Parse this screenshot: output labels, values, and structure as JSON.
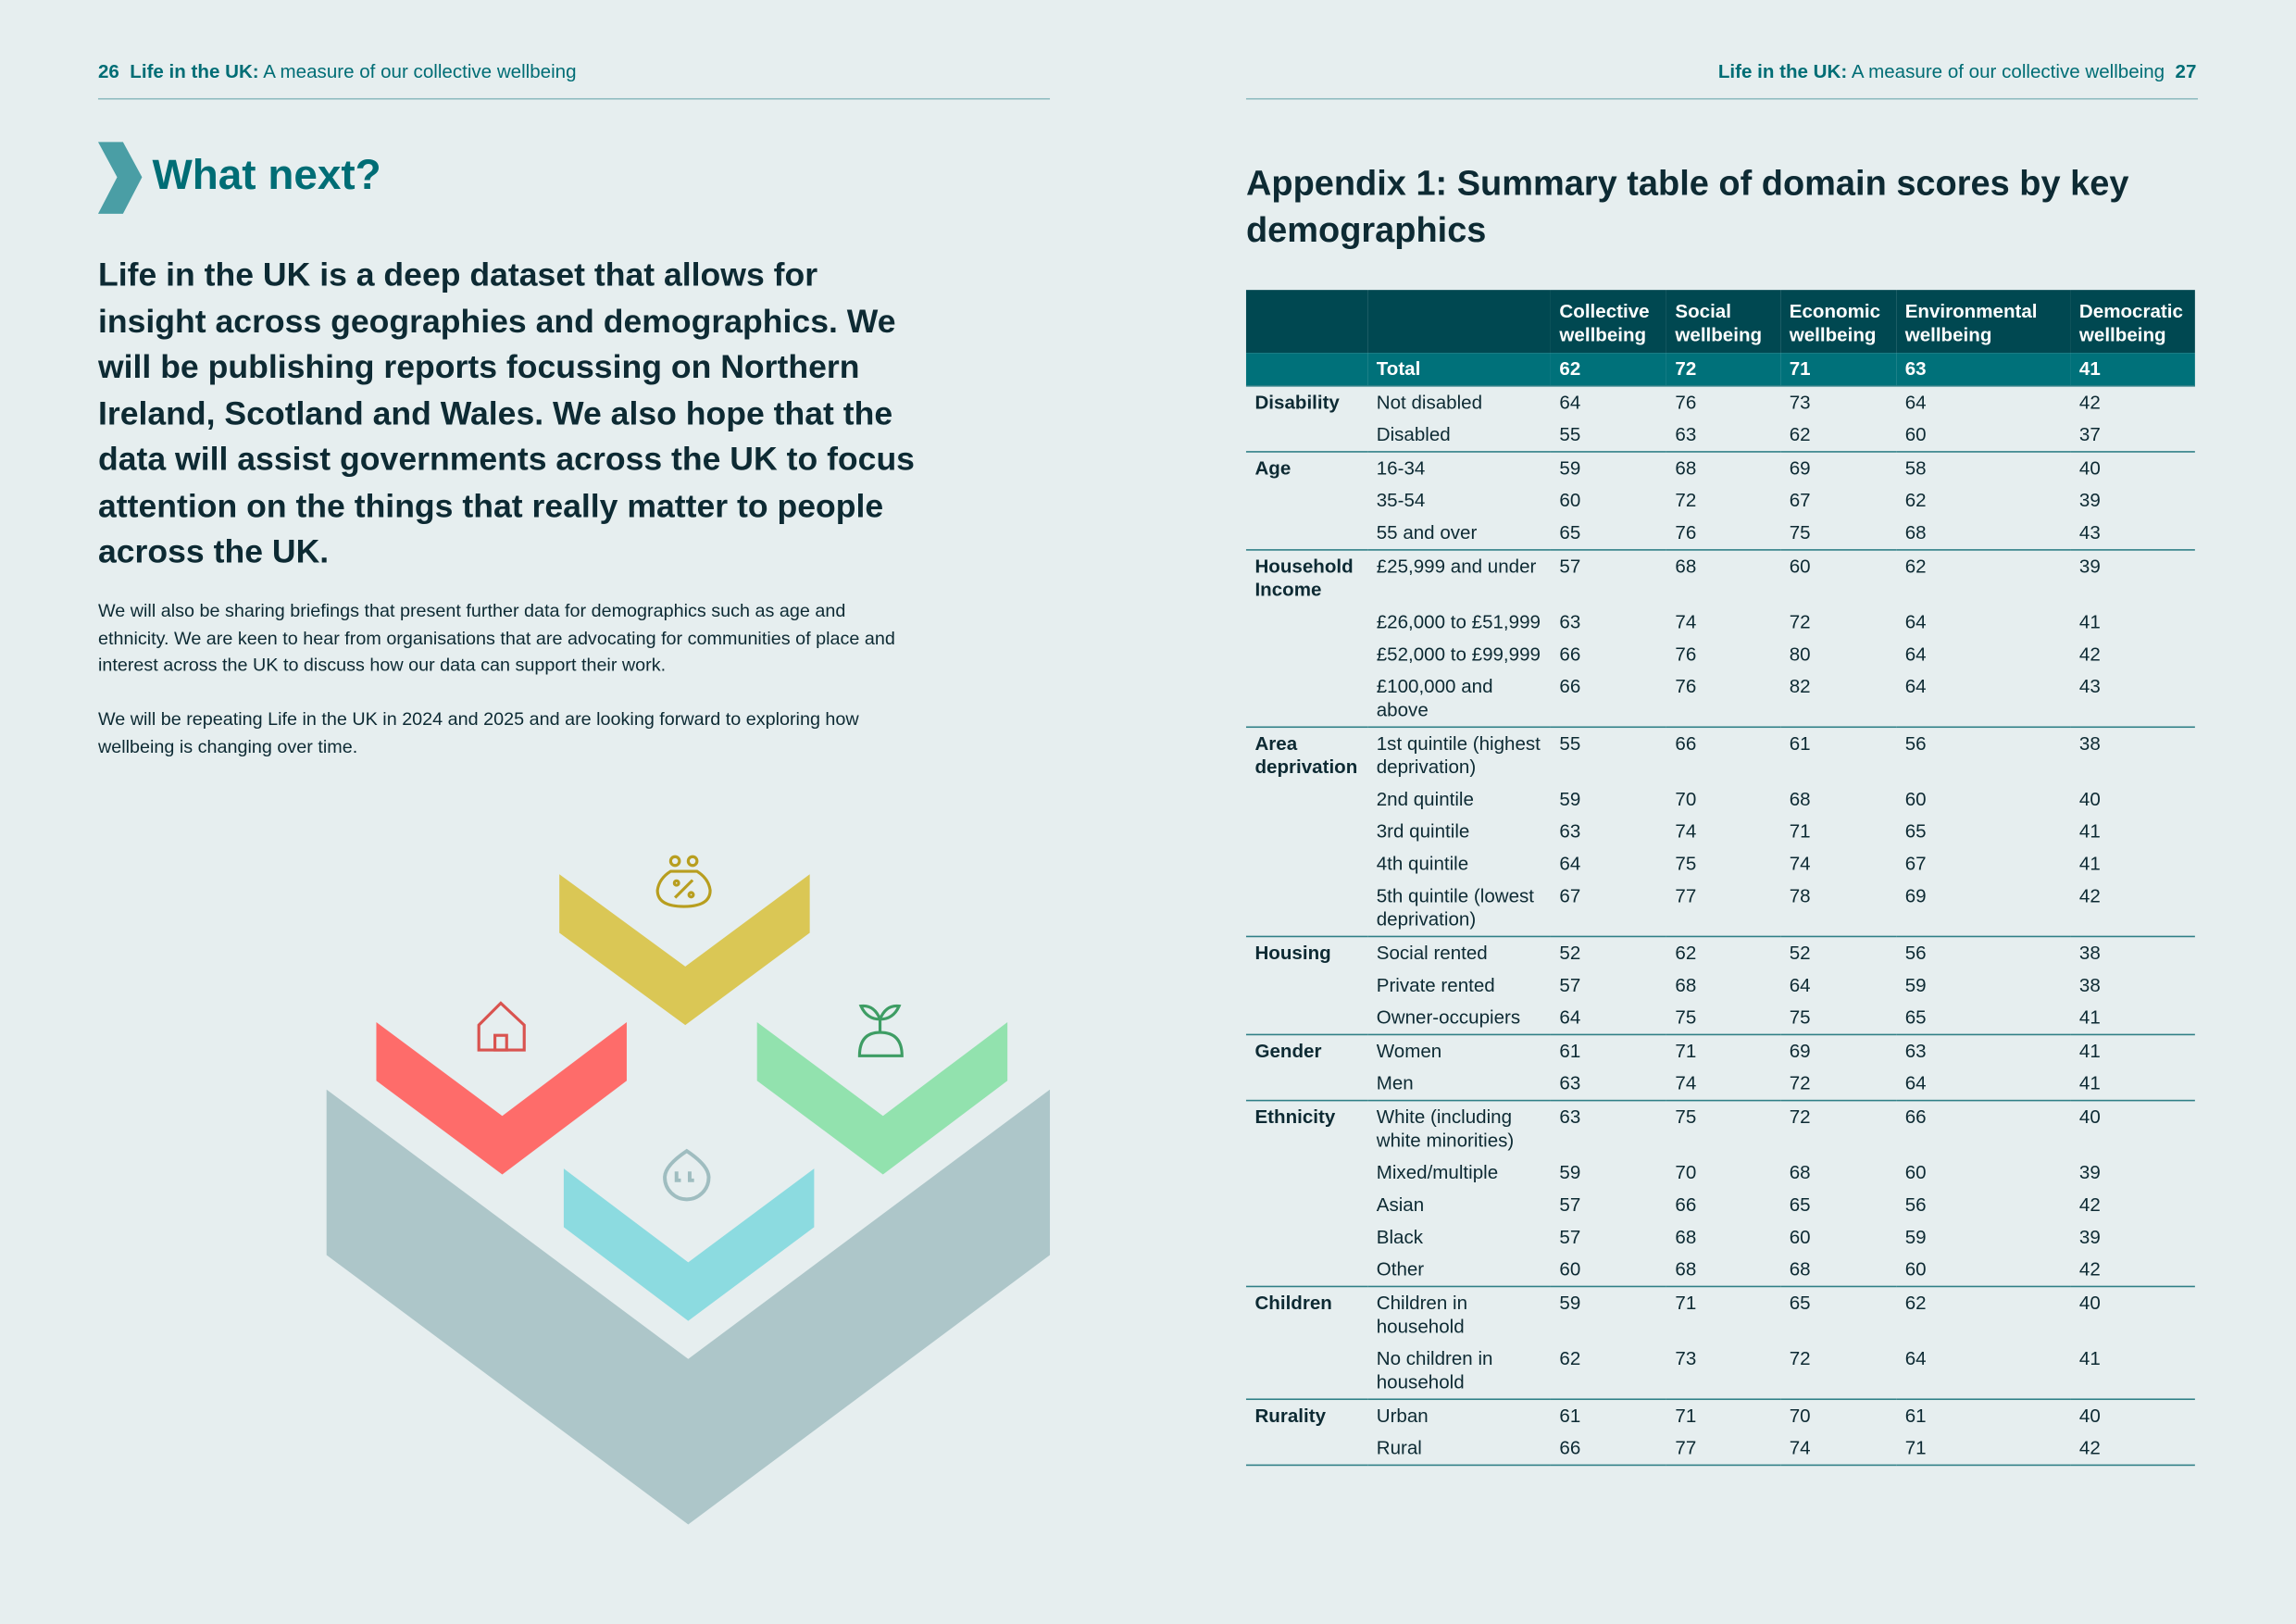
{
  "left": {
    "page_number": "26",
    "header_bold": "Life in the UK:",
    "header_rest": "A measure of our collective wellbeing",
    "heading": "What next?",
    "lead": "Life in the UK is a deep dataset that allows for insight across geographies and demographics. We will be publishing reports focussing on Northern Ireland, Scotland and Wales. We also hope that the data will assist governments across the UK to focus attention on the things that really matter to people across the UK.",
    "paragraphs": [
      "We will also be sharing briefings that present further data for demographics such as age and ethnicity. We are keen to hear from organisations that are advocating for communities of place and interest across the UK to discuss how our data can support their work.",
      "We will be repeating Life in the UK in 2024 and 2025 and are looking forward to exploring how wellbeing is changing over time."
    ]
  },
  "right": {
    "page_number": "27",
    "header_bold": "Life in the UK:",
    "header_rest": "A measure of our collective wellbeing",
    "title": "Appendix 1: Summary table of domain scores by key demographics",
    "table": {
      "columns": [
        "Collective wellbeing",
        "Social wellbeing",
        "Economic wellbeing",
        "Environmental wellbeing",
        "Democratic wellbeing"
      ],
      "total": {
        "label": "Total",
        "values": [
          62,
          72,
          71,
          63,
          41
        ]
      },
      "groups": [
        {
          "name": "Disability",
          "rows": [
            {
              "label": "Not disabled",
              "values": [
                64,
                76,
                73,
                64,
                42
              ]
            },
            {
              "label": "Disabled",
              "values": [
                55,
                63,
                62,
                60,
                37
              ]
            }
          ]
        },
        {
          "name": "Age",
          "rows": [
            {
              "label": "16-34",
              "values": [
                59,
                68,
                69,
                58,
                40
              ]
            },
            {
              "label": "35-54",
              "values": [
                60,
                72,
                67,
                62,
                39
              ]
            },
            {
              "label": "55 and over",
              "values": [
                65,
                76,
                75,
                68,
                43
              ]
            }
          ]
        },
        {
          "name": "Household Income",
          "rows": [
            {
              "label": "£25,999 and under",
              "values": [
                57,
                68,
                60,
                62,
                39
              ]
            },
            {
              "label": "£26,000 to £51,999",
              "values": [
                63,
                74,
                72,
                64,
                41
              ]
            },
            {
              "label": "£52,000 to £99,999",
              "values": [
                66,
                76,
                80,
                64,
                42
              ]
            },
            {
              "label": "£100,000 and above",
              "values": [
                66,
                76,
                82,
                64,
                43
              ]
            }
          ]
        },
        {
          "name": "Area deprivation",
          "rows": [
            {
              "label": "1st quintile (highest deprivation)",
              "values": [
                55,
                66,
                61,
                56,
                38
              ]
            },
            {
              "label": "2nd quintile",
              "values": [
                59,
                70,
                68,
                60,
                40
              ]
            },
            {
              "label": "3rd quintile",
              "values": [
                63,
                74,
                71,
                65,
                41
              ]
            },
            {
              "label": "4th quintile",
              "values": [
                64,
                75,
                74,
                67,
                41
              ]
            },
            {
              "label": "5th quintile (lowest deprivation)",
              "values": [
                67,
                77,
                78,
                69,
                42
              ]
            }
          ]
        },
        {
          "name": "Housing",
          "rows": [
            {
              "label": "Social rented",
              "values": [
                52,
                62,
                52,
                56,
                38
              ]
            },
            {
              "label": "Private rented",
              "values": [
                57,
                68,
                64,
                59,
                38
              ]
            },
            {
              "label": "Owner-occupiers",
              "values": [
                64,
                75,
                75,
                65,
                41
              ]
            }
          ]
        },
        {
          "name": "Gender",
          "rows": [
            {
              "label": "Women",
              "values": [
                61,
                71,
                69,
                63,
                41
              ]
            },
            {
              "label": "Men",
              "values": [
                63,
                74,
                72,
                64,
                41
              ]
            }
          ]
        },
        {
          "name": "Ethnicity",
          "rows": [
            {
              "label": "White (including white minorities)",
              "values": [
                63,
                75,
                72,
                66,
                40
              ]
            },
            {
              "label": "Mixed/multiple",
              "values": [
                59,
                70,
                68,
                60,
                39
              ]
            },
            {
              "label": "Asian",
              "values": [
                57,
                66,
                65,
                56,
                42
              ]
            },
            {
              "label": "Black",
              "values": [
                57,
                68,
                60,
                59,
                39
              ]
            },
            {
              "label": "Other",
              "values": [
                60,
                68,
                68,
                60,
                42
              ]
            }
          ]
        },
        {
          "name": "Children",
          "rows": [
            {
              "label": "Children in household",
              "values": [
                59,
                71,
                65,
                62,
                40
              ]
            },
            {
              "label": "No children in household",
              "values": [
                62,
                73,
                72,
                64,
                41
              ]
            }
          ]
        },
        {
          "name": "Rurality",
          "rows": [
            {
              "label": "Urban",
              "values": [
                61,
                71,
                70,
                61,
                40
              ]
            },
            {
              "label": "Rural",
              "values": [
                66,
                77,
                74,
                71,
                42
              ]
            }
          ]
        }
      ]
    }
  }
}
